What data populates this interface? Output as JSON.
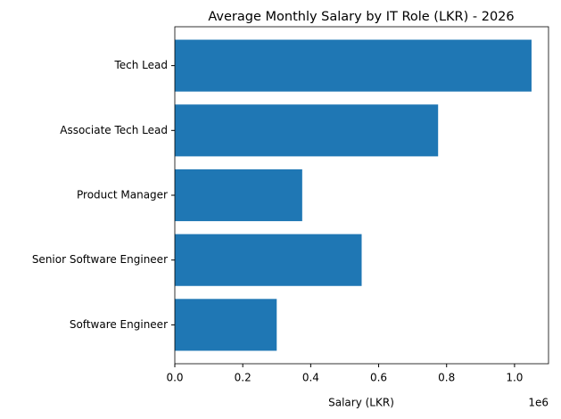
{
  "chart_data": {
    "type": "barh",
    "title": "Average Monthly Salary by IT Role (LKR) - 2026",
    "xlabel": "Salary (LKR)",
    "x_offset_label": "1e6",
    "categories": [
      "Software Engineer",
      "Senior Software Engineer",
      "Product Manager",
      "Associate Tech Lead",
      "Tech Lead"
    ],
    "values": [
      300000,
      550000,
      375000,
      775000,
      1050000
    ],
    "color": "#1f77b4",
    "xlim": [
      0,
      1100000
    ],
    "xticks": [
      {
        "value": 0,
        "label": "0.0"
      },
      {
        "value": 200000,
        "label": "0.2"
      },
      {
        "value": 400000,
        "label": "0.4"
      },
      {
        "value": 600000,
        "label": "0.6"
      },
      {
        "value": 800000,
        "label": "0.8"
      },
      {
        "value": 1000000,
        "label": "1.0"
      }
    ]
  }
}
